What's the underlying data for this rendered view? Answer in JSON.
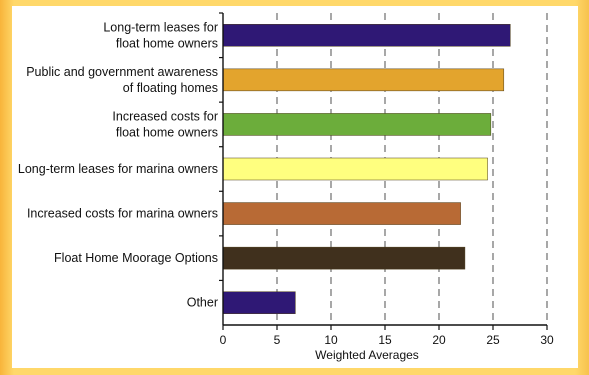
{
  "colors": {
    "background": "#ffd86a",
    "panel": "#ffffff",
    "grid": "#6d6d6d",
    "axis": "#111111"
  },
  "chart_data": {
    "type": "bar",
    "orientation": "horizontal",
    "categories": [
      "Long-term leases for\nfloat home owners",
      "Public and government awareness\nof floating homes",
      "Increased costs for\nfloat home owners",
      "Long-term leases for marina owners",
      "Increased costs for marina owners",
      "Float Home Moorage Options",
      "Other"
    ],
    "values": [
      26.6,
      26.0,
      24.8,
      24.5,
      22.0,
      22.4,
      6.7
    ],
    "colors": [
      "#2f1875",
      "#e3a42d",
      "#6cad3b",
      "#ffff7f",
      "#b86a35",
      "#40301d",
      "#2f1875"
    ],
    "xlabel": "Weighted Averages",
    "xlim": [
      0,
      30
    ],
    "xticks": [
      0,
      5,
      10,
      15,
      20,
      25,
      30
    ],
    "grid": true,
    "grid_style": "dashed-vertical"
  }
}
